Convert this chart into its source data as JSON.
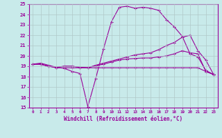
{
  "xlabel": "Windchill (Refroidissement éolien,°C)",
  "bg_color": "#c8eaea",
  "line_color": "#990099",
  "grid_color": "#b0c8c8",
  "xlim": [
    -0.5,
    23.5
  ],
  "ylim": [
    15,
    25
  ],
  "xticks": [
    0,
    1,
    2,
    3,
    4,
    5,
    6,
    7,
    8,
    9,
    10,
    11,
    12,
    13,
    14,
    15,
    16,
    17,
    18,
    19,
    20,
    21,
    22,
    23
  ],
  "yticks": [
    15,
    16,
    17,
    18,
    19,
    20,
    21,
    22,
    23,
    24,
    25
  ],
  "lines": [
    {
      "x": [
        0,
        1,
        2,
        3,
        4,
        5,
        6,
        7,
        8,
        9,
        10,
        11,
        12,
        13,
        14,
        15,
        16,
        17,
        18,
        19,
        20,
        21,
        22,
        23
      ],
      "y": [
        19.2,
        19.3,
        19.1,
        18.9,
        18.8,
        18.5,
        18.3,
        15.1,
        17.8,
        20.7,
        23.3,
        24.7,
        24.8,
        24.6,
        24.7,
        24.6,
        24.4,
        23.5,
        22.8,
        21.9,
        20.2,
        19.9,
        18.6,
        18.2
      ]
    },
    {
      "x": [
        0,
        1,
        2,
        3,
        4,
        5,
        6,
        7,
        8,
        9,
        10,
        11,
        12,
        13,
        14,
        15,
        16,
        17,
        18,
        19,
        20,
        21,
        22,
        23
      ],
      "y": [
        19.2,
        19.2,
        19.0,
        18.9,
        19.0,
        19.0,
        18.9,
        18.85,
        19.1,
        19.3,
        19.5,
        19.7,
        19.9,
        20.1,
        20.2,
        20.3,
        20.6,
        21.0,
        21.3,
        21.8,
        22.0,
        20.5,
        19.6,
        18.2
      ]
    },
    {
      "x": [
        0,
        1,
        2,
        3,
        4,
        5,
        6,
        7,
        8,
        9,
        10,
        11,
        12,
        13,
        14,
        15,
        16,
        17,
        18,
        19,
        20,
        21,
        22,
        23
      ],
      "y": [
        19.2,
        19.2,
        19.0,
        18.9,
        19.0,
        19.0,
        18.9,
        18.85,
        19.05,
        19.2,
        19.4,
        19.6,
        19.7,
        19.75,
        19.8,
        19.8,
        19.9,
        20.0,
        20.2,
        20.5,
        20.3,
        20.2,
        18.5,
        18.2
      ]
    },
    {
      "x": [
        0,
        1,
        2,
        3,
        4,
        5,
        6,
        7,
        8,
        9,
        10,
        11,
        12,
        13,
        14,
        15,
        16,
        17,
        18,
        19,
        20,
        21,
        22,
        23
      ],
      "y": [
        19.2,
        19.2,
        19.0,
        18.85,
        18.85,
        18.85,
        18.85,
        18.85,
        18.85,
        18.85,
        18.85,
        18.85,
        18.85,
        18.85,
        18.85,
        18.85,
        18.85,
        18.85,
        18.85,
        18.85,
        18.85,
        18.85,
        18.5,
        18.2
      ]
    }
  ]
}
